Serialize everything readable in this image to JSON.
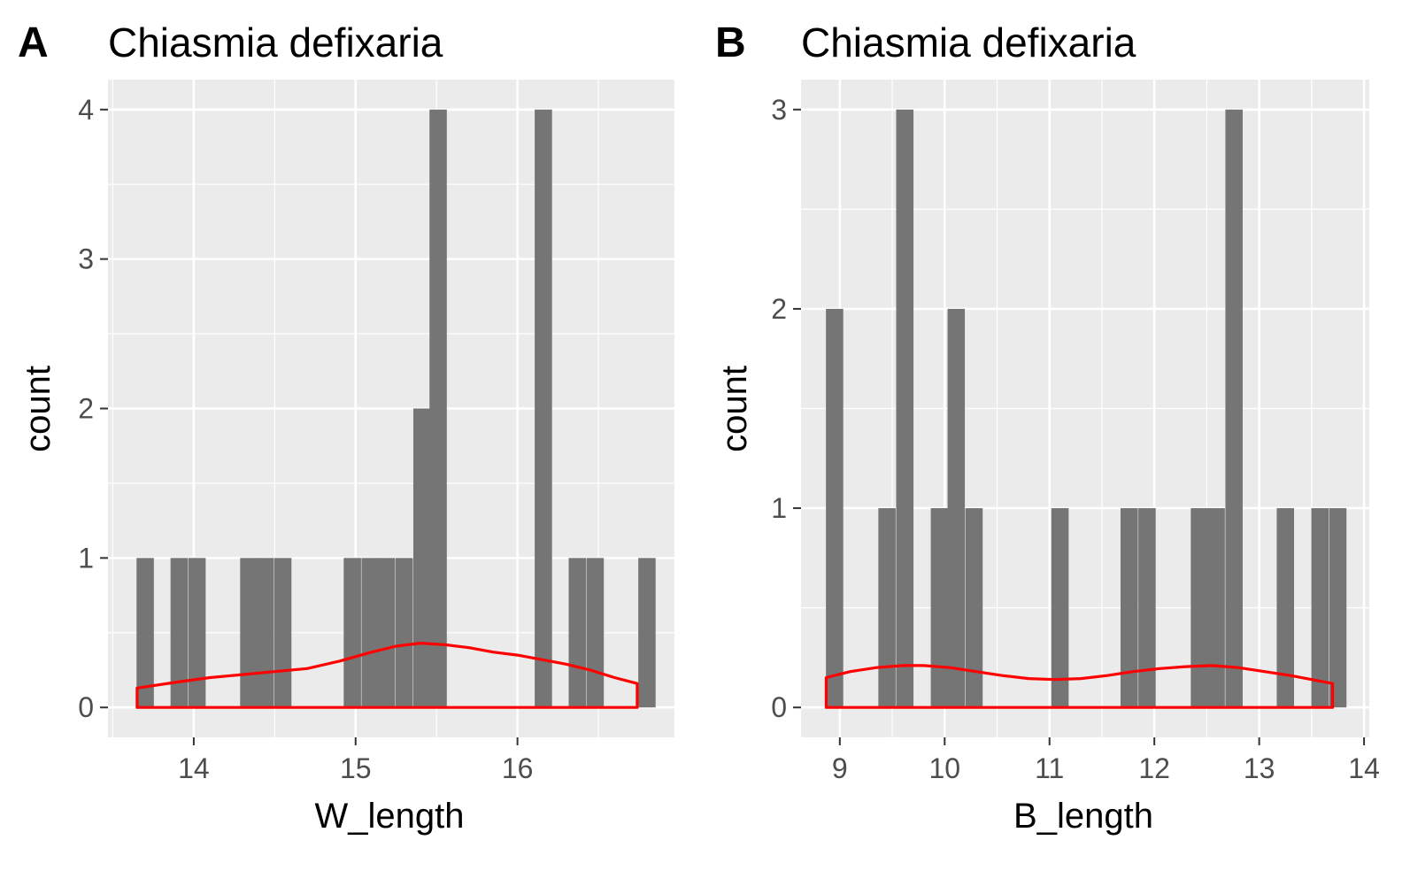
{
  "chart_data": [
    {
      "type": "bar",
      "panel_label": "A",
      "title": "Chiasmia defixaria",
      "xlabel": "W_length",
      "ylabel": "count",
      "xlim": [
        13.47,
        16.97
      ],
      "ylim": [
        -0.2,
        4.2
      ],
      "x_ticks": [
        14,
        15,
        16
      ],
      "x_tick_labels": [
        "14",
        "15",
        "16"
      ],
      "y_ticks": [
        0,
        1,
        2,
        3,
        4
      ],
      "y_tick_labels": [
        "0",
        "1",
        "2",
        "3",
        "4"
      ],
      "bin_width": 0.107,
      "bins": [
        {
          "x": 13.7,
          "count": 1
        },
        {
          "x": 13.91,
          "count": 1
        },
        {
          "x": 14.02,
          "count": 1
        },
        {
          "x": 14.34,
          "count": 1
        },
        {
          "x": 14.44,
          "count": 1
        },
        {
          "x": 14.55,
          "count": 1
        },
        {
          "x": 14.98,
          "count": 1
        },
        {
          "x": 15.09,
          "count": 1
        },
        {
          "x": 15.19,
          "count": 1
        },
        {
          "x": 15.3,
          "count": 1
        },
        {
          "x": 15.41,
          "count": 2
        },
        {
          "x": 15.51,
          "count": 4
        },
        {
          "x": 16.16,
          "count": 4
        },
        {
          "x": 16.37,
          "count": 1
        },
        {
          "x": 16.48,
          "count": 1
        },
        {
          "x": 16.8,
          "count": 1
        }
      ],
      "density_curve": {
        "x": [
          13.65,
          13.9,
          14.1,
          14.3,
          14.5,
          14.7,
          14.9,
          15.1,
          15.25,
          15.4,
          15.55,
          15.7,
          15.85,
          16.0,
          16.15,
          16.3,
          16.45,
          16.6,
          16.74
        ],
        "y": [
          0.13,
          0.17,
          0.2,
          0.22,
          0.24,
          0.26,
          0.31,
          0.37,
          0.41,
          0.43,
          0.42,
          0.4,
          0.37,
          0.35,
          0.32,
          0.29,
          0.25,
          0.2,
          0.16
        ]
      },
      "colors": {
        "bar": "#757575",
        "density": "#ff0000",
        "panel_bg": "#ebebeb",
        "grid": "#ffffff"
      }
    },
    {
      "type": "bar",
      "panel_label": "B",
      "title": "Chiasmia defixaria",
      "xlabel": "B_length",
      "ylabel": "count",
      "xlim": [
        8.63,
        14.05
      ],
      "ylim": [
        -0.15,
        3.15
      ],
      "x_ticks": [
        9,
        10,
        11,
        12,
        13,
        14
      ],
      "x_tick_labels": [
        "9",
        "10",
        "11",
        "12",
        "13",
        "14"
      ],
      "y_ticks": [
        0,
        1,
        2,
        3
      ],
      "y_tick_labels": [
        "0",
        "1",
        "2",
        "3"
      ],
      "bin_width": 0.165,
      "bins": [
        {
          "x": 8.95,
          "count": 2
        },
        {
          "x": 9.45,
          "count": 1
        },
        {
          "x": 9.62,
          "count": 3
        },
        {
          "x": 9.95,
          "count": 1
        },
        {
          "x": 10.11,
          "count": 2
        },
        {
          "x": 10.28,
          "count": 1
        },
        {
          "x": 11.1,
          "count": 1
        },
        {
          "x": 11.76,
          "count": 1
        },
        {
          "x": 11.93,
          "count": 1
        },
        {
          "x": 12.43,
          "count": 1
        },
        {
          "x": 12.59,
          "count": 1
        },
        {
          "x": 12.76,
          "count": 3
        },
        {
          "x": 13.25,
          "count": 1
        },
        {
          "x": 13.58,
          "count": 1
        },
        {
          "x": 13.75,
          "count": 1
        }
      ],
      "density_curve": {
        "x": [
          8.87,
          9.1,
          9.35,
          9.6,
          9.8,
          10.05,
          10.3,
          10.55,
          10.8,
          11.05,
          11.3,
          11.55,
          11.8,
          12.05,
          12.3,
          12.55,
          12.8,
          13.05,
          13.3,
          13.5,
          13.7
        ],
        "y": [
          0.15,
          0.18,
          0.2,
          0.21,
          0.21,
          0.2,
          0.18,
          0.16,
          0.145,
          0.14,
          0.145,
          0.16,
          0.18,
          0.195,
          0.205,
          0.21,
          0.2,
          0.18,
          0.16,
          0.14,
          0.12
        ]
      },
      "colors": {
        "bar": "#757575",
        "density": "#ff0000",
        "panel_bg": "#ebebeb",
        "grid": "#ffffff"
      }
    }
  ]
}
